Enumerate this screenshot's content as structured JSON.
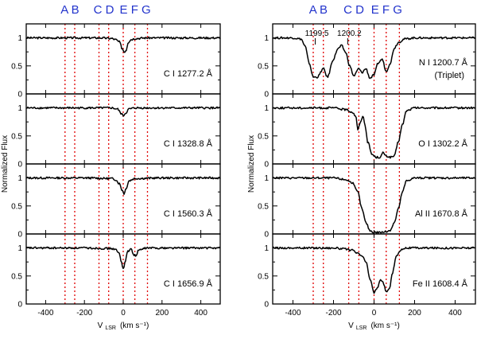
{
  "chart_data": {
    "type": "line",
    "title": "",
    "xlabel": "V",
    "xlabel_sub": "LSR",
    "xlabel_units": "(km s⁻¹)",
    "ylabel": "Normalized Flux",
    "xlim": [
      -500,
      500
    ],
    "ylim": [
      0,
      1.25
    ],
    "x_ticks": [
      -400,
      -200,
      0,
      200,
      400
    ],
    "y_ticks": [
      0,
      0.5,
      1
    ],
    "y_tick_labels": [
      "0",
      "0.5",
      "1"
    ],
    "cloud_components": [
      {
        "label": "A",
        "velocity": -300
      },
      {
        "label": "B",
        "velocity": -250
      },
      {
        "label": "C",
        "velocity": -125
      },
      {
        "label": "D",
        "velocity": -75
      },
      {
        "label": "E",
        "velocity": 0
      },
      {
        "label": "F",
        "velocity": 60
      },
      {
        "label": "G",
        "velocity": 125
      }
    ],
    "cloud_groups": [
      {
        "text": "A B",
        "center_velocity": -275
      },
      {
        "text": "C D",
        "center_velocity": -100
      },
      {
        "text": "E F G",
        "center_velocity": 62
      }
    ],
    "columns": [
      {
        "panels": [
          {
            "label": "C I 1277.2 Å",
            "series": [
              {
                "x": [
                  -500,
                  -300,
                  -120,
                  -60,
                  -40,
                  -20,
                  -5,
                  5,
                  15,
                  25,
                  40,
                  60,
                  120,
                  300,
                  500
                ],
                "y": [
                  1.0,
                  1.0,
                  1.0,
                  0.99,
                  0.97,
                  0.93,
                  0.81,
                  0.75,
                  0.78,
                  0.92,
                  0.97,
                  0.99,
                  1.0,
                  1.0,
                  1.0
                ]
              }
            ]
          },
          {
            "label": "C I 1328.8 Å",
            "series": [
              {
                "x": [
                  -500,
                  -200,
                  -60,
                  -30,
                  -10,
                  0,
                  10,
                  30,
                  60,
                  200,
                  500
                ],
                "y": [
                  1.0,
                  1.0,
                  1.0,
                  0.98,
                  0.9,
                  0.86,
                  0.9,
                  0.98,
                  1.0,
                  1.0,
                  1.0
                ]
              }
            ]
          },
          {
            "label": "C I 1560.3 Å",
            "series": [
              {
                "x": [
                  -500,
                  -200,
                  -60,
                  -40,
                  -20,
                  -5,
                  5,
                  15,
                  30,
                  60,
                  200,
                  500
                ],
                "y": [
                  1.0,
                  1.0,
                  0.99,
                  0.97,
                  0.9,
                  0.78,
                  0.72,
                  0.82,
                  0.95,
                  0.99,
                  1.0,
                  1.0
                ]
              }
            ]
          },
          {
            "label": "C I 1656.9 Å",
            "series": [
              {
                "x": [
                  -500,
                  -200,
                  -60,
                  -40,
                  -20,
                  -10,
                  0,
                  10,
                  20,
                  40,
                  55,
                  65,
                  80,
                  120,
                  300,
                  500
                ],
                "y": [
                  1.0,
                  1.0,
                  0.99,
                  0.97,
                  0.9,
                  0.75,
                  0.64,
                  0.74,
                  0.93,
                  0.98,
                  0.88,
                  0.86,
                  0.96,
                  1.0,
                  1.0,
                  1.0
                ]
              }
            ]
          }
        ]
      },
      {
        "panels": [
          {
            "label": "N I 1200.7 Å",
            "sublabel": "(Triplet)",
            "annotations": [
              {
                "text": "1199.5",
                "velocity": -290
              },
              {
                "text": "1200.2",
                "velocity": -130
              }
            ],
            "series": [
              {
                "x": [
                  -500,
                  -400,
                  -360,
                  -340,
                  -320,
                  -300,
                  -280,
                  -250,
                  -230,
                  -200,
                  -180,
                  -160,
                  -140,
                  -120,
                  -100,
                  -75,
                  -60,
                  -40,
                  -20,
                  0,
                  20,
                  40,
                  60,
                  80,
                  100,
                  120,
                  150,
                  200,
                  300,
                  500
                ],
                "y": [
                  1.0,
                  1.0,
                  0.98,
                  0.85,
                  0.55,
                  0.3,
                  0.3,
                  0.45,
                  0.3,
                  0.62,
                  0.8,
                  0.86,
                  0.74,
                  0.5,
                  0.32,
                  0.45,
                  0.38,
                  0.45,
                  0.28,
                  0.34,
                  0.55,
                  0.62,
                  0.4,
                  0.55,
                  0.82,
                  0.92,
                  0.98,
                  1.0,
                  1.0,
                  1.0
                ]
              }
            ]
          },
          {
            "label": "O I 1302.2 Å",
            "series": [
              {
                "x": [
                  -500,
                  -300,
                  -200,
                  -140,
                  -110,
                  -90,
                  -80,
                  -70,
                  -55,
                  -45,
                  -30,
                  -10,
                  10,
                  30,
                  45,
                  60,
                  80,
                  100,
                  120,
                  140,
                  160,
                  200,
                  300,
                  500
                ],
                "y": [
                  1.0,
                  1.0,
                  1.0,
                  0.97,
                  0.93,
                  0.86,
                  0.6,
                  0.72,
                  0.86,
                  0.7,
                  0.38,
                  0.17,
                  0.12,
                  0.12,
                  0.2,
                  0.14,
                  0.12,
                  0.14,
                  0.4,
                  0.7,
                  0.95,
                  1.0,
                  1.0,
                  1.0
                ]
              }
            ]
          },
          {
            "label": "Al II 1670.8 Å",
            "series": [
              {
                "x": [
                  -500,
                  -300,
                  -200,
                  -140,
                  -110,
                  -80,
                  -60,
                  -40,
                  -20,
                  0,
                  20,
                  40,
                  60,
                  80,
                  100,
                  120,
                  140,
                  160,
                  200,
                  300,
                  500
                ],
                "y": [
                  1.0,
                  1.0,
                  1.0,
                  0.97,
                  0.92,
                  0.75,
                  0.45,
                  0.2,
                  0.06,
                  0.03,
                  0.03,
                  0.03,
                  0.04,
                  0.07,
                  0.2,
                  0.45,
                  0.75,
                  0.95,
                  1.0,
                  1.0,
                  1.0
                ]
              }
            ]
          },
          {
            "label": "Fe II 1608.4 Å",
            "series": [
              {
                "x": [
                  -500,
                  -300,
                  -200,
                  -140,
                  -110,
                  -80,
                  -60,
                  -40,
                  -20,
                  0,
                  15,
                  30,
                  45,
                  60,
                  75,
                  90,
                  110,
                  130,
                  150,
                  180,
                  300,
                  500
                ],
                "y": [
                  1.0,
                  1.0,
                  1.0,
                  0.98,
                  0.96,
                  0.9,
                  0.86,
                  0.75,
                  0.45,
                  0.2,
                  0.28,
                  0.42,
                  0.38,
                  0.22,
                  0.26,
                  0.55,
                  0.85,
                  0.96,
                  1.0,
                  1.0,
                  1.0,
                  1.0
                ]
              }
            ]
          }
        ]
      }
    ]
  }
}
